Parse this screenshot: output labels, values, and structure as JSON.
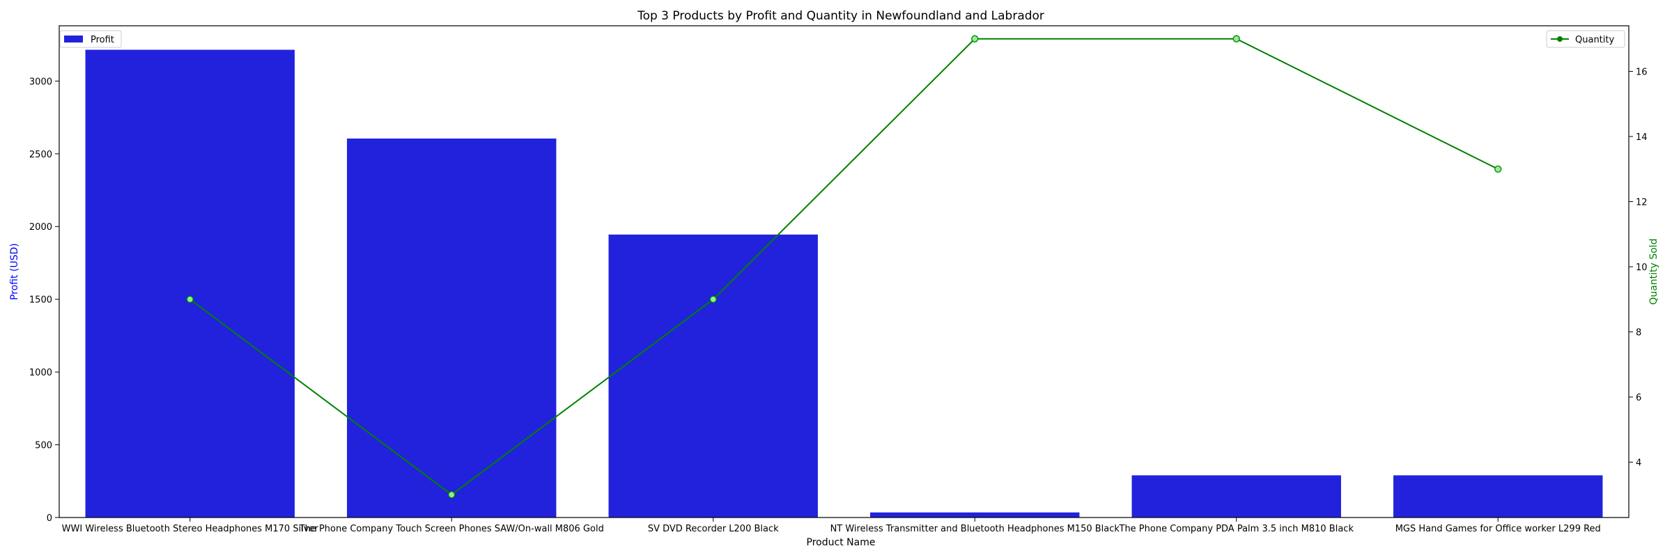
{
  "chart_data": {
    "type": "bar+line",
    "title": "Top 3 Products by Profit and Quantity in Newfoundland and Labrador",
    "xlabel": "Product Name",
    "ylabel_left": "Profit (USD)",
    "ylabel_right": "Quantity Sold",
    "categories": [
      "WWI Wireless Bluetooth Stereo Headphones M170 Silver",
      "The Phone Company Touch Screen Phones SAW/On-wall M806 Gold",
      "SV DVD Recorder L200 Black",
      "NT Wireless Transmitter and Bluetooth Headphones M150 Black",
      "The Phone Company PDA Palm 3.5 inch M810 Black",
      "MGS Hand Games for Office worker L299 Red"
    ],
    "series": [
      {
        "name": "Profit",
        "kind": "bar",
        "axis": "left",
        "color": "#2222dd",
        "values": [
          3215,
          2605,
          1945,
          35,
          290,
          290
        ]
      },
      {
        "name": "Quantity",
        "kind": "line",
        "axis": "right",
        "color": "#008000",
        "marker_color": "#90ee90",
        "values": [
          9,
          3,
          9,
          17,
          17,
          13
        ]
      }
    ],
    "ylim_left": [
      0,
      3380
    ],
    "ylim_right": [
      2.3,
      17.4
    ],
    "yticks_left": [
      0,
      500,
      1000,
      1500,
      2000,
      2500,
      3000
    ],
    "yticks_right": [
      4,
      6,
      8,
      10,
      12,
      14,
      16
    ],
    "legend_left": "top-left",
    "legend_right": "top-right",
    "grid": false
  }
}
